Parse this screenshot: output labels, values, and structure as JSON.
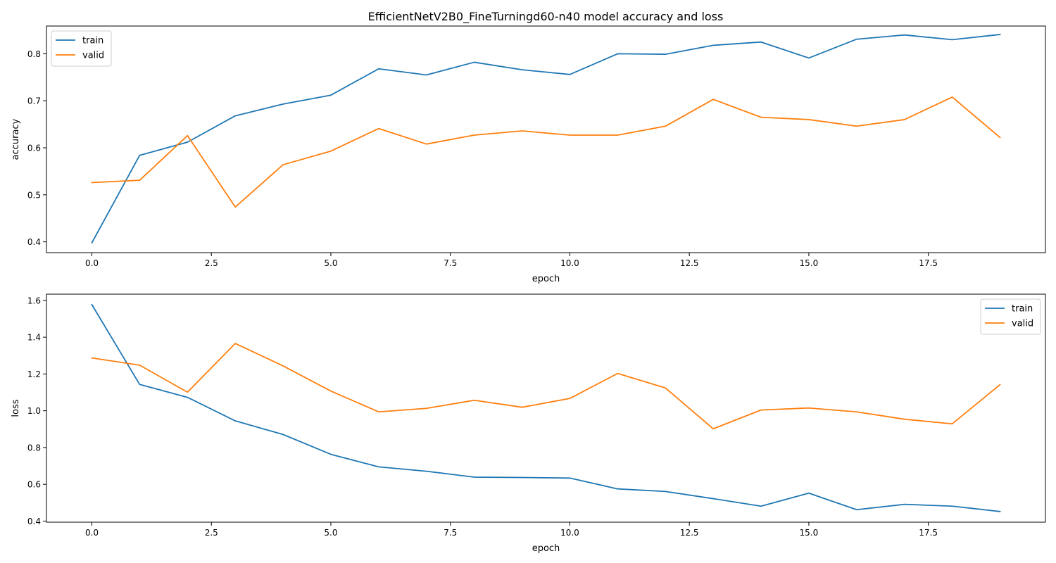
{
  "figure_title": "EfficientNetV2B0_FineTurningd60-n40 model accuracy and loss",
  "colors": {
    "train": "#1f77b4",
    "valid": "#ff7f0e"
  },
  "chart_data": [
    {
      "type": "line",
      "xlabel": "epoch",
      "ylabel": "accuracy",
      "x": [
        0,
        1,
        2,
        3,
        4,
        5,
        6,
        7,
        8,
        9,
        10,
        11,
        12,
        13,
        14,
        15,
        16,
        17,
        18,
        19
      ],
      "xlim": [
        -0.95,
        19.95
      ],
      "ylim": [
        0.377,
        0.859
      ],
      "xticks": [
        0.0,
        2.5,
        5.0,
        7.5,
        10.0,
        12.5,
        15.0,
        17.5
      ],
      "xtick_labels": [
        "0.0",
        "2.5",
        "5.0",
        "7.5",
        "10.0",
        "12.5",
        "15.0",
        "17.5"
      ],
      "yticks": [
        0.4,
        0.5,
        0.6,
        0.7,
        0.8
      ],
      "ytick_labels": [
        "0.4",
        "0.5",
        "0.6",
        "0.7",
        "0.8"
      ],
      "legend_position": "upper left",
      "grid": false,
      "series": [
        {
          "name": "train",
          "color": "#1f77b4",
          "values": [
            0.398,
            0.584,
            0.612,
            0.668,
            0.693,
            0.712,
            0.768,
            0.755,
            0.782,
            0.766,
            0.756,
            0.8,
            0.799,
            0.818,
            0.825,
            0.791,
            0.831,
            0.84,
            0.83,
            0.841
          ]
        },
        {
          "name": "valid",
          "color": "#ff7f0e",
          "values": [
            0.526,
            0.531,
            0.626,
            0.474,
            0.564,
            0.593,
            0.641,
            0.608,
            0.627,
            0.636,
            0.627,
            0.627,
            0.646,
            0.703,
            0.665,
            0.66,
            0.646,
            0.66,
            0.708,
            0.622
          ]
        }
      ]
    },
    {
      "type": "line",
      "xlabel": "epoch",
      "ylabel": "loss",
      "x": [
        0,
        1,
        2,
        3,
        4,
        5,
        6,
        7,
        8,
        9,
        10,
        11,
        12,
        13,
        14,
        15,
        16,
        17,
        18,
        19
      ],
      "xlim": [
        -0.95,
        19.95
      ],
      "ylim": [
        0.394,
        1.634
      ],
      "xticks": [
        0.0,
        2.5,
        5.0,
        7.5,
        10.0,
        12.5,
        15.0,
        17.5
      ],
      "xtick_labels": [
        "0.0",
        "2.5",
        "5.0",
        "7.5",
        "10.0",
        "12.5",
        "15.0",
        "17.5"
      ],
      "yticks": [
        0.4,
        0.6,
        0.8,
        1.0,
        1.2,
        1.4,
        1.6
      ],
      "ytick_labels": [
        "0.4",
        "0.6",
        "0.8",
        "1.0",
        "1.2",
        "1.4",
        "1.6"
      ],
      "legend_position": "upper right",
      "grid": false,
      "series": [
        {
          "name": "train",
          "color": "#1f77b4",
          "values": [
            1.577,
            1.143,
            1.073,
            0.945,
            0.871,
            0.763,
            0.695,
            0.671,
            0.639,
            0.637,
            0.634,
            0.575,
            0.561,
            0.522,
            0.481,
            0.552,
            0.462,
            0.491,
            0.481,
            0.452
          ]
        },
        {
          "name": "valid",
          "color": "#ff7f0e",
          "values": [
            1.287,
            1.248,
            1.101,
            1.366,
            1.244,
            1.107,
            0.994,
            1.013,
            1.057,
            1.019,
            1.067,
            1.203,
            1.124,
            0.902,
            1.004,
            1.015,
            0.994,
            0.954,
            0.929,
            1.142
          ]
        }
      ]
    }
  ]
}
